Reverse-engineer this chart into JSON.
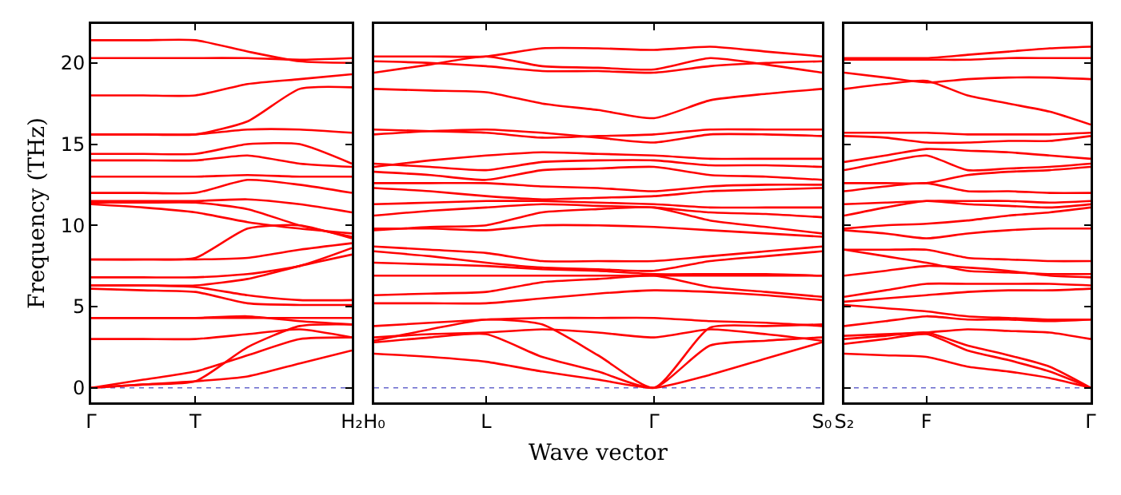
{
  "chart_data": [
    {
      "type": "line",
      "ylabel": "Frequency (THz)",
      "categories": [
        "Γ",
        null,
        "T",
        null,
        null,
        "H₂"
      ],
      "ylim": [
        -0.9,
        22.4
      ],
      "yticks": [
        0,
        5,
        10,
        15,
        20
      ],
      "ref_lines": [
        {
          "axis": "y",
          "value": 0,
          "color": "#6666cc",
          "line_style": "dotted"
        }
      ],
      "series": [
        {
          "color": "#ff0000",
          "values": [
            21.4,
            21.4,
            21.4,
            20.7,
            20.1,
            20.0
          ]
        },
        {
          "color": "#ff0000",
          "values": [
            20.3,
            20.3,
            20.3,
            20.3,
            20.2,
            20.3
          ]
        },
        {
          "color": "#ff0000",
          "values": [
            18.0,
            18.0,
            18.0,
            18.7,
            19.0,
            19.3
          ]
        },
        {
          "color": "#ff0000",
          "values": [
            15.6,
            15.6,
            15.6,
            16.4,
            18.4,
            18.5
          ]
        },
        {
          "color": "#ff0000",
          "values": [
            15.6,
            15.6,
            15.6,
            15.9,
            15.9,
            15.7
          ]
        },
        {
          "color": "#ff0000",
          "values": [
            14.4,
            14.4,
            14.4,
            15.0,
            15.0,
            13.8
          ]
        },
        {
          "color": "#ff0000",
          "values": [
            14.0,
            14.0,
            14.0,
            14.3,
            13.8,
            13.6
          ]
        },
        {
          "color": "#ff0000",
          "values": [
            13.0,
            13.0,
            13.0,
            13.1,
            13.0,
            13.0
          ]
        },
        {
          "color": "#ff0000",
          "values": [
            12.0,
            12.0,
            12.0,
            12.8,
            12.5,
            12.0
          ]
        },
        {
          "color": "#ff0000",
          "values": [
            11.5,
            11.5,
            11.5,
            11.6,
            11.3,
            10.8
          ]
        },
        {
          "color": "#ff0000",
          "values": [
            11.4,
            11.4,
            11.4,
            11.0,
            10.0,
            9.3
          ]
        },
        {
          "color": "#ff0000",
          "values": [
            11.3,
            11.1,
            10.8,
            10.2,
            9.8,
            9.5
          ]
        },
        {
          "color": "#ff0000",
          "values": [
            7.9,
            7.9,
            8.0,
            9.8,
            10.0,
            9.2
          ]
        },
        {
          "color": "#ff0000",
          "values": [
            7.9,
            7.9,
            7.9,
            8.0,
            8.5,
            8.9
          ]
        },
        {
          "color": "#ff0000",
          "values": [
            6.8,
            6.8,
            6.8,
            7.0,
            7.5,
            8.6
          ]
        },
        {
          "color": "#ff0000",
          "values": [
            6.3,
            6.3,
            6.3,
            6.7,
            7.5,
            8.2
          ]
        },
        {
          "color": "#ff0000",
          "values": [
            6.1,
            6.0,
            5.9,
            5.2,
            5.1,
            5.1
          ]
        },
        {
          "color": "#ff0000",
          "values": [
            6.3,
            6.3,
            6.2,
            5.7,
            5.4,
            5.4
          ]
        },
        {
          "color": "#ff0000",
          "values": [
            4.3,
            4.3,
            4.3,
            4.4,
            4.1,
            3.9
          ]
        },
        {
          "color": "#ff0000",
          "values": [
            4.3,
            4.3,
            4.3,
            4.3,
            4.3,
            4.3
          ]
        },
        {
          "color": "#ff0000",
          "values": [
            3.0,
            3.0,
            3.0,
            3.3,
            3.6,
            3.1
          ]
        },
        {
          "color": "#ff0000",
          "values": [
            0,
            0.5,
            1.0,
            2.0,
            3.0,
            3.1
          ]
        },
        {
          "color": "#ff0000",
          "values": [
            0,
            0.2,
            0.4,
            2.5,
            3.8,
            3.9
          ]
        },
        {
          "color": "#ff0000",
          "values": [
            0,
            0.2,
            0.4,
            0.7,
            1.5,
            2.3
          ]
        }
      ]
    },
    {
      "type": "line",
      "xlabel": "Wave vector",
      "tick_labels": "x",
      "categories": [
        "H₀",
        null,
        "L",
        null,
        null,
        "Γ",
        null,
        null,
        "S₀"
      ],
      "ylim": [
        -0.9,
        22.4
      ],
      "ref_lines": [
        {
          "axis": "y",
          "value": 0,
          "color": "#6666cc",
          "line_style": "dotted"
        }
      ],
      "series": [
        {
          "color": "#ff0000",
          "values": [
            20.4,
            20.4,
            20.4,
            20.9,
            20.9,
            20.8,
            21.0,
            20.7,
            20.4
          ]
        },
        {
          "color": "#ff0000",
          "values": [
            19.4,
            19.9,
            20.4,
            19.8,
            19.7,
            19.6,
            20.3,
            19.9,
            19.4
          ]
        },
        {
          "color": "#ff0000",
          "values": [
            20.1,
            20.0,
            19.8,
            19.5,
            19.5,
            19.4,
            19.8,
            20.0,
            20.1
          ]
        },
        {
          "color": "#ff0000",
          "values": [
            18.4,
            18.3,
            18.2,
            17.5,
            17.1,
            16.6,
            17.7,
            18.1,
            18.4
          ]
        },
        {
          "color": "#ff0000",
          "values": [
            15.9,
            15.8,
            15.7,
            15.4,
            15.5,
            15.6,
            15.9,
            15.9,
            15.9
          ]
        },
        {
          "color": "#ff0000",
          "values": [
            15.6,
            15.8,
            15.9,
            15.7,
            15.4,
            15.1,
            15.6,
            15.6,
            15.5
          ]
        },
        {
          "color": "#ff0000",
          "values": [
            13.6,
            14.0,
            14.3,
            14.5,
            14.4,
            14.3,
            14.1,
            14.1,
            14.1
          ]
        },
        {
          "color": "#ff0000",
          "values": [
            13.8,
            13.6,
            13.4,
            13.9,
            14.0,
            14.0,
            13.7,
            13.7,
            13.6
          ]
        },
        {
          "color": "#ff0000",
          "values": [
            13.3,
            13.1,
            12.8,
            13.4,
            13.5,
            13.6,
            13.1,
            13.0,
            12.8
          ]
        },
        {
          "color": "#ff0000",
          "values": [
            12.6,
            12.6,
            12.6,
            12.4,
            12.3,
            12.1,
            12.4,
            12.5,
            12.5
          ]
        },
        {
          "color": "#ff0000",
          "values": [
            12.3,
            12.1,
            11.8,
            11.6,
            11.7,
            11.8,
            12.1,
            12.2,
            12.3
          ]
        },
        {
          "color": "#ff0000",
          "values": [
            11.3,
            11.4,
            11.5,
            11.5,
            11.4,
            11.3,
            11.1,
            11.1,
            11.1
          ]
        },
        {
          "color": "#ff0000",
          "values": [
            10.6,
            10.9,
            11.1,
            11.3,
            11.2,
            11.1,
            10.8,
            10.7,
            10.5
          ]
        },
        {
          "color": "#ff0000",
          "values": [
            9.7,
            9.9,
            10.0,
            10.8,
            11.0,
            11.1,
            10.3,
            9.9,
            9.5
          ]
        },
        {
          "color": "#ff0000",
          "values": [
            9.8,
            9.8,
            9.7,
            10.0,
            10.0,
            9.9,
            9.7,
            9.5,
            9.3
          ]
        },
        {
          "color": "#ff0000",
          "values": [
            8.7,
            8.5,
            8.3,
            7.8,
            7.8,
            7.8,
            8.1,
            8.4,
            8.7
          ]
        },
        {
          "color": "#ff0000",
          "values": [
            8.4,
            8.1,
            7.7,
            7.4,
            7.3,
            7.2,
            7.8,
            8.1,
            8.4
          ]
        },
        {
          "color": "#ff0000",
          "values": [
            7.7,
            7.6,
            7.5,
            7.3,
            7.2,
            7.0,
            7.0,
            7.0,
            6.9
          ]
        },
        {
          "color": "#ff0000",
          "values": [
            6.9,
            6.9,
            6.9,
            6.9,
            6.9,
            6.9,
            6.9,
            6.9,
            6.9
          ]
        },
        {
          "color": "#ff0000",
          "values": [
            5.7,
            5.8,
            5.9,
            6.5,
            6.7,
            6.9,
            6.2,
            5.9,
            5.6
          ]
        },
        {
          "color": "#ff0000",
          "values": [
            5.2,
            5.2,
            5.2,
            5.5,
            5.8,
            6.0,
            5.9,
            5.7,
            5.4
          ]
        },
        {
          "color": "#ff0000",
          "values": [
            3.8,
            4.0,
            4.2,
            4.3,
            4.3,
            4.3,
            4.1,
            4.0,
            3.8
          ]
        },
        {
          "color": "#ff0000",
          "values": [
            3.1,
            3.3,
            3.4,
            3.6,
            3.4,
            3.1,
            3.6,
            3.3,
            2.9
          ]
        },
        {
          "color": "#ff0000",
          "values": [
            2.9,
            3.6,
            4.2,
            3.9,
            2.0,
            0,
            3.7,
            3.8,
            3.9
          ]
        },
        {
          "color": "#ff0000",
          "values": [
            2.8,
            3.1,
            3.3,
            1.9,
            1.0,
            0,
            2.6,
            2.9,
            3.1
          ]
        },
        {
          "color": "#ff0000",
          "values": [
            2.1,
            1.9,
            1.6,
            1.0,
            0.5,
            0,
            0.8,
            1.8,
            2.8
          ]
        }
      ]
    },
    {
      "type": "line",
      "tick_labels": "x",
      "categories": [
        "S₂",
        null,
        "F",
        null,
        null,
        null,
        "Γ"
      ],
      "ylim": [
        -0.9,
        22.4
      ],
      "yticks": [
        0,
        5,
        10,
        15,
        20
      ],
      "ref_lines": [
        {
          "axis": "y",
          "value": 0,
          "color": "#6666cc",
          "line_style": "dotted"
        }
      ],
      "series": [
        {
          "color": "#ff0000",
          "values": [
            20.3,
            20.3,
            20.3,
            20.5,
            20.7,
            20.9,
            21.0
          ]
        },
        {
          "color": "#ff0000",
          "values": [
            20.2,
            20.2,
            20.2,
            20.2,
            20.3,
            20.3,
            20.3
          ]
        },
        {
          "color": "#ff0000",
          "values": [
            19.4,
            19.1,
            18.8,
            19.0,
            19.1,
            19.1,
            19.0
          ]
        },
        {
          "color": "#ff0000",
          "values": [
            18.4,
            18.7,
            18.9,
            18.0,
            17.5,
            17.0,
            16.2
          ]
        },
        {
          "color": "#ff0000",
          "values": [
            15.7,
            15.7,
            15.7,
            15.6,
            15.6,
            15.6,
            15.7
          ]
        },
        {
          "color": "#ff0000",
          "values": [
            15.5,
            15.4,
            15.1,
            15.1,
            15.2,
            15.2,
            15.5
          ]
        },
        {
          "color": "#ff0000",
          "values": [
            13.9,
            14.3,
            14.7,
            14.6,
            14.5,
            14.3,
            14.1
          ]
        },
        {
          "color": "#ff0000",
          "values": [
            13.4,
            13.9,
            14.3,
            13.4,
            13.5,
            13.6,
            13.8
          ]
        },
        {
          "color": "#ff0000",
          "values": [
            12.6,
            12.6,
            12.6,
            13.1,
            13.3,
            13.4,
            13.6
          ]
        },
        {
          "color": "#ff0000",
          "values": [
            12.1,
            12.4,
            12.6,
            12.1,
            12.1,
            12.0,
            12.0
          ]
        },
        {
          "color": "#ff0000",
          "values": [
            11.3,
            11.4,
            11.5,
            11.5,
            11.5,
            11.4,
            11.5
          ]
        },
        {
          "color": "#ff0000",
          "values": [
            10.6,
            11.1,
            11.5,
            11.3,
            11.2,
            11.1,
            11.3
          ]
        },
        {
          "color": "#ff0000",
          "values": [
            9.8,
            10.0,
            10.1,
            10.3,
            10.6,
            10.8,
            11.1
          ]
        },
        {
          "color": "#ff0000",
          "values": [
            9.7,
            9.5,
            9.2,
            9.5,
            9.7,
            9.8,
            9.8
          ]
        },
        {
          "color": "#ff0000",
          "values": [
            8.5,
            8.5,
            8.5,
            8.0,
            7.9,
            7.8,
            7.8
          ]
        },
        {
          "color": "#ff0000",
          "values": [
            8.5,
            8.1,
            7.7,
            7.2,
            7.1,
            7.0,
            7.0
          ]
        },
        {
          "color": "#ff0000",
          "values": [
            6.9,
            7.2,
            7.5,
            7.4,
            7.2,
            6.9,
            6.8
          ]
        },
        {
          "color": "#ff0000",
          "values": [
            5.6,
            6.0,
            6.4,
            6.4,
            6.4,
            6.4,
            6.3
          ]
        },
        {
          "color": "#ff0000",
          "values": [
            5.3,
            5.5,
            5.7,
            5.9,
            6.0,
            6.0,
            6.1
          ]
        },
        {
          "color": "#ff0000",
          "values": [
            5.1,
            4.9,
            4.7,
            4.4,
            4.3,
            4.2,
            4.2
          ]
        },
        {
          "color": "#ff0000",
          "values": [
            3.8,
            4.1,
            4.4,
            4.2,
            4.2,
            4.1,
            4.2
          ]
        },
        {
          "color": "#ff0000",
          "values": [
            3.2,
            3.3,
            3.4,
            3.6,
            3.5,
            3.4,
            3.0
          ]
        },
        {
          "color": "#ff0000",
          "values": [
            3.0,
            3.2,
            3.4,
            2.6,
            2.0,
            1.3,
            0
          ]
        },
        {
          "color": "#ff0000",
          "values": [
            2.7,
            3.0,
            3.3,
            2.3,
            1.7,
            1.0,
            0
          ]
        },
        {
          "color": "#ff0000",
          "values": [
            2.1,
            2.0,
            1.9,
            1.3,
            1.0,
            0.6,
            0
          ]
        }
      ]
    }
  ]
}
